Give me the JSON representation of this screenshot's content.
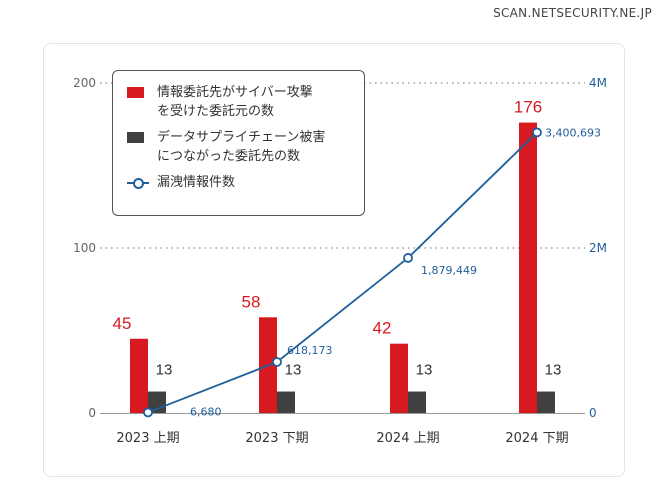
{
  "source": "SCAN.NETSECURITY.NE.JP",
  "colors": {
    "red": "#d71920",
    "gray": "#404040",
    "blue": "#1f5f9b",
    "axis": "#666666"
  },
  "legend": {
    "red_label": "情報委託先がサイバー攻撃\nを受けた委託元の数",
    "gray_label": "データサプライチェーン被害\nにつながった委託先の数",
    "line_label": "漏洩情報件数"
  },
  "chart_data": {
    "type": "bar",
    "title": "",
    "categories": [
      "2023 上期",
      "2023 下期",
      "2024 上期",
      "2024 下期"
    ],
    "series": [
      {
        "name": "情報委託先がサイバー攻撃を受けた委託元の数",
        "axis": "left",
        "values": [
          45,
          58,
          42,
          176
        ],
        "labels": [
          "45",
          "58",
          "42",
          "176"
        ]
      },
      {
        "name": "データサプライチェーン被害につながった委託先の数",
        "axis": "left",
        "values": [
          13,
          13,
          13,
          13
        ],
        "labels": [
          "13",
          "13",
          "13",
          "13"
        ]
      },
      {
        "name": "漏洩情報件数",
        "type": "line",
        "axis": "right",
        "values": [
          6680,
          618173,
          1879449,
          3400693
        ],
        "labels": [
          "6,680",
          "618,173",
          "1,879,449",
          "3,400,693"
        ]
      }
    ],
    "left_axis": {
      "range": [
        0,
        200
      ],
      "ticks": [
        0,
        100,
        200
      ],
      "tick_labels": [
        "0",
        "100",
        "200"
      ]
    },
    "right_axis": {
      "range": [
        0,
        4000000
      ],
      "ticks": [
        0,
        2000000,
        4000000
      ],
      "tick_labels": [
        "0",
        "2M",
        "4M"
      ]
    },
    "gridlines": "dotted at 100 and 200",
    "legend_position": "top-left"
  }
}
